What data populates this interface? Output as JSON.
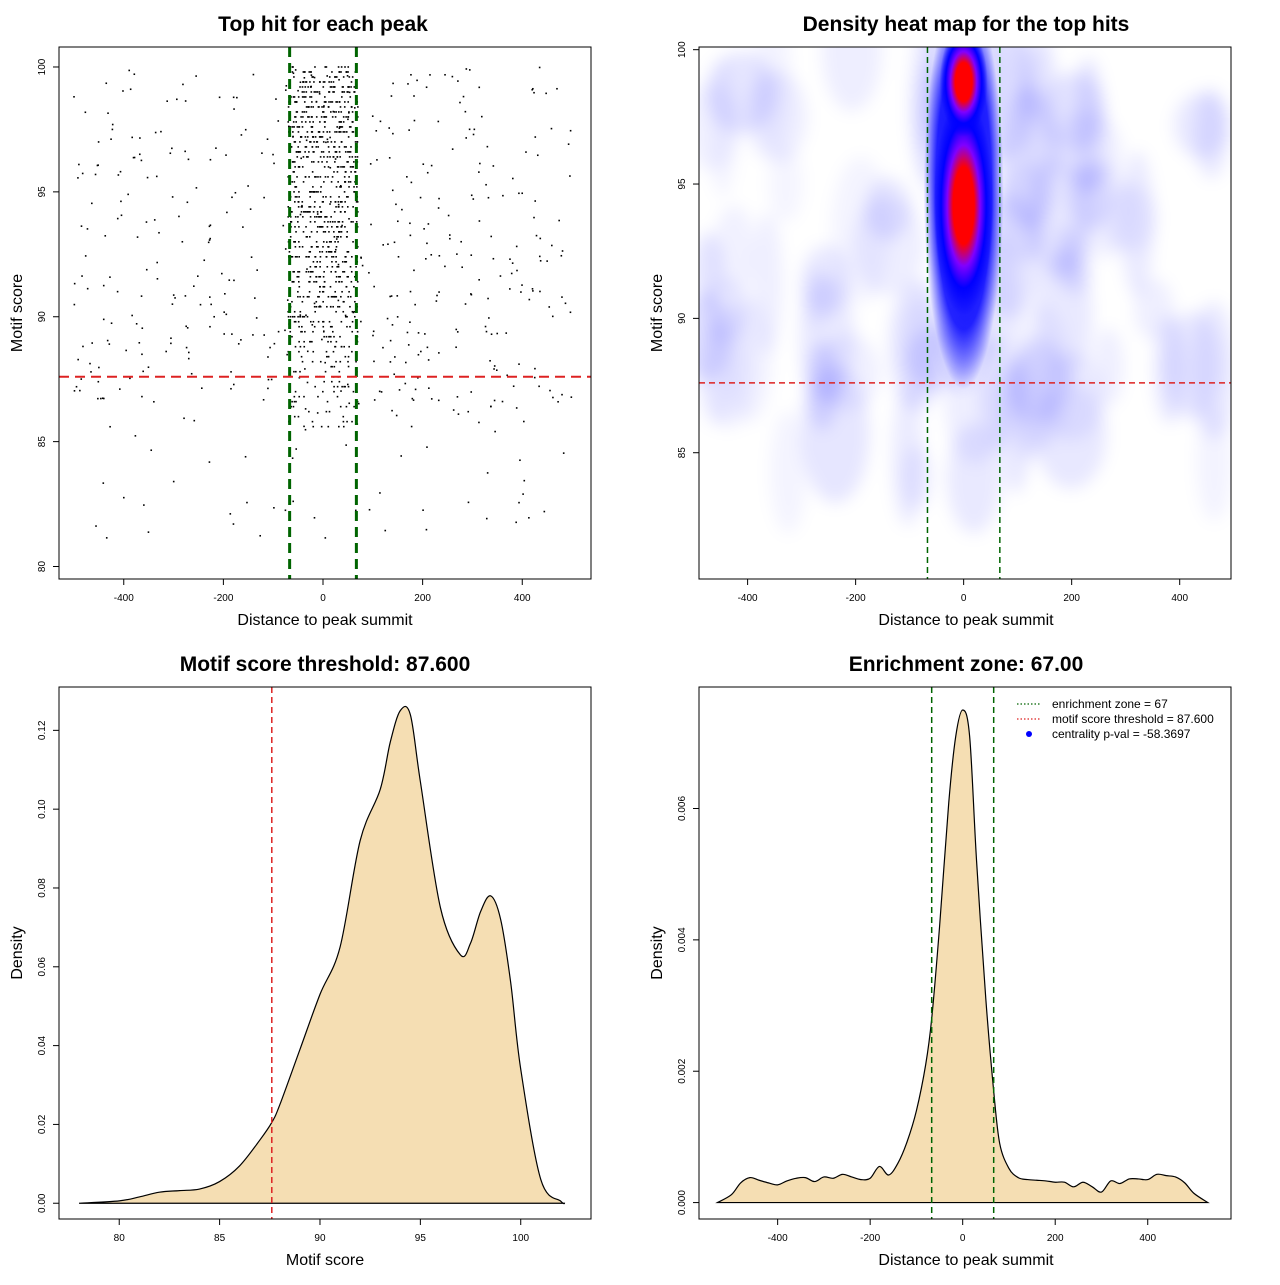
{
  "chart_data": [
    {
      "id": "scatter",
      "type": "scatter",
      "title": "Top hit for each peak",
      "xlabel": "Distance to peak summit",
      "ylabel": "Motif score",
      "xlim": [
        -530,
        538
      ],
      "ylim": [
        79.5,
        100.8
      ],
      "xticks": [
        -400,
        -200,
        0,
        200,
        400
      ],
      "yticks": [
        80,
        85,
        90,
        95,
        100
      ],
      "points_summary": {
        "central_band": {
          "x_range": [
            -70,
            70
          ],
          "y_range": [
            85.5,
            100
          ],
          "count": 900
        },
        "background": {
          "x_range": [
            -500,
            500
          ],
          "y_range": [
            81,
            100
          ],
          "count": 520
        }
      },
      "vlines": [
        -67,
        67
      ],
      "vline_color": "#006400",
      "hline": 87.6,
      "hline_color": "#dd2222",
      "point_color": "#000000"
    },
    {
      "id": "heatmap",
      "type": "heatmap",
      "title": "Density heat map for the top hits",
      "xlabel": "Distance to peak summit",
      "ylabel": "Motif score",
      "xlim": [
        -490,
        495
      ],
      "ylim": [
        80.3,
        100.1
      ],
      "xticks": [
        -400,
        -200,
        0,
        200,
        400
      ],
      "yticks": [
        85,
        90,
        95,
        100
      ],
      "hot_spots": [
        {
          "x": 0,
          "y": 94.2,
          "level": "high"
        },
        {
          "x": 0,
          "y": 98.8,
          "level": "high"
        }
      ],
      "color_scale": [
        "#ffffff",
        "#0000ff",
        "#ff0000"
      ],
      "vlines": [
        -67,
        67
      ],
      "vline_color": "#006400",
      "hline": 87.6,
      "hline_color": "#dd2222"
    },
    {
      "id": "score-density",
      "type": "area",
      "title": "Motif score threshold: 87.600",
      "xlabel": "Motif score",
      "ylabel": "Density",
      "xlim": [
        77,
        103.5
      ],
      "ylim": [
        -0.004,
        0.131
      ],
      "xticks": [
        80,
        85,
        90,
        95,
        100
      ],
      "yticks": [
        0.0,
        0.02,
        0.04,
        0.06,
        0.08,
        0.1,
        0.12
      ],
      "ytick_labels": [
        "0.00",
        "0.02",
        "0.04",
        "0.06",
        "0.08",
        "0.10",
        "0.12"
      ],
      "x": [
        78,
        80,
        81,
        82,
        83,
        84,
        85,
        86,
        87,
        87.6,
        88,
        89,
        90,
        91,
        92,
        93,
        93.5,
        94,
        94.5,
        95,
        96,
        97,
        97.5,
        98,
        98.5,
        99,
        99.5,
        100,
        101,
        102,
        102.2
      ],
      "y": [
        0,
        0.0006,
        0.0016,
        0.0028,
        0.0032,
        0.0036,
        0.0055,
        0.0095,
        0.016,
        0.0205,
        0.025,
        0.039,
        0.053,
        0.065,
        0.092,
        0.105,
        0.117,
        0.125,
        0.124,
        0.107,
        0.075,
        0.063,
        0.066,
        0.074,
        0.078,
        0.072,
        0.056,
        0.034,
        0.006,
        0.0005,
        0
      ],
      "fill_color": "#f5deb3",
      "vline": 87.6,
      "vline_color": "#dd2222"
    },
    {
      "id": "distance-density",
      "type": "area",
      "title": "Enrichment zone: 67.00",
      "xlabel": "Distance to peak summit",
      "ylabel": "Density",
      "xlim": [
        -570,
        580
      ],
      "ylim": [
        -0.00025,
        0.00785
      ],
      "xticks": [
        -400,
        -200,
        0,
        200,
        400
      ],
      "yticks": [
        0.0,
        0.002,
        0.004,
        0.006
      ],
      "ytick_labels": [
        "0.000",
        "0.002",
        "0.004",
        "0.006"
      ],
      "x": [
        -530,
        -500,
        -480,
        -460,
        -440,
        -420,
        -400,
        -380,
        -360,
        -340,
        -320,
        -300,
        -280,
        -260,
        -240,
        -220,
        -200,
        -180,
        -160,
        -140,
        -120,
        -100,
        -80,
        -67,
        -50,
        -30,
        -15,
        0,
        15,
        30,
        50,
        67,
        80,
        100,
        120,
        140,
        160,
        180,
        200,
        220,
        240,
        260,
        280,
        300,
        320,
        340,
        360,
        380,
        400,
        420,
        440,
        460,
        480,
        500,
        530
      ],
      "y": [
        0,
        0.00012,
        0.0003,
        0.00038,
        0.00034,
        0.0003,
        0.00027,
        0.00033,
        0.00037,
        0.00038,
        0.00032,
        0.00039,
        0.00037,
        0.00043,
        0.00039,
        0.00035,
        0.00037,
        0.00055,
        0.00042,
        0.0006,
        0.00093,
        0.0014,
        0.0021,
        0.0028,
        0.0042,
        0.0061,
        0.0071,
        0.0075,
        0.0071,
        0.0052,
        0.0031,
        0.0017,
        0.0009,
        0.00052,
        0.00038,
        0.00035,
        0.00034,
        0.00033,
        0.00031,
        0.00031,
        0.00024,
        0.00031,
        0.00024,
        0.00016,
        0.00033,
        0.00029,
        0.00036,
        0.00036,
        0.00035,
        0.00043,
        0.00041,
        0.00039,
        0.0003,
        0.00014,
        0
      ],
      "fill_color": "#f5deb3",
      "vlines": [
        -67,
        67
      ],
      "vline_color": "#006400",
      "legend": {
        "position": "top-right",
        "items": [
          {
            "label": "enrichment zone = 67",
            "style": "dotted-line",
            "color": "#006400"
          },
          {
            "label": "motif score threshold = 87.600",
            "style": "dotted-line",
            "color": "#dd2222"
          },
          {
            "label": "centrality p-val = -58.3697",
            "style": "point",
            "color": "#0000ff"
          }
        ]
      }
    }
  ]
}
